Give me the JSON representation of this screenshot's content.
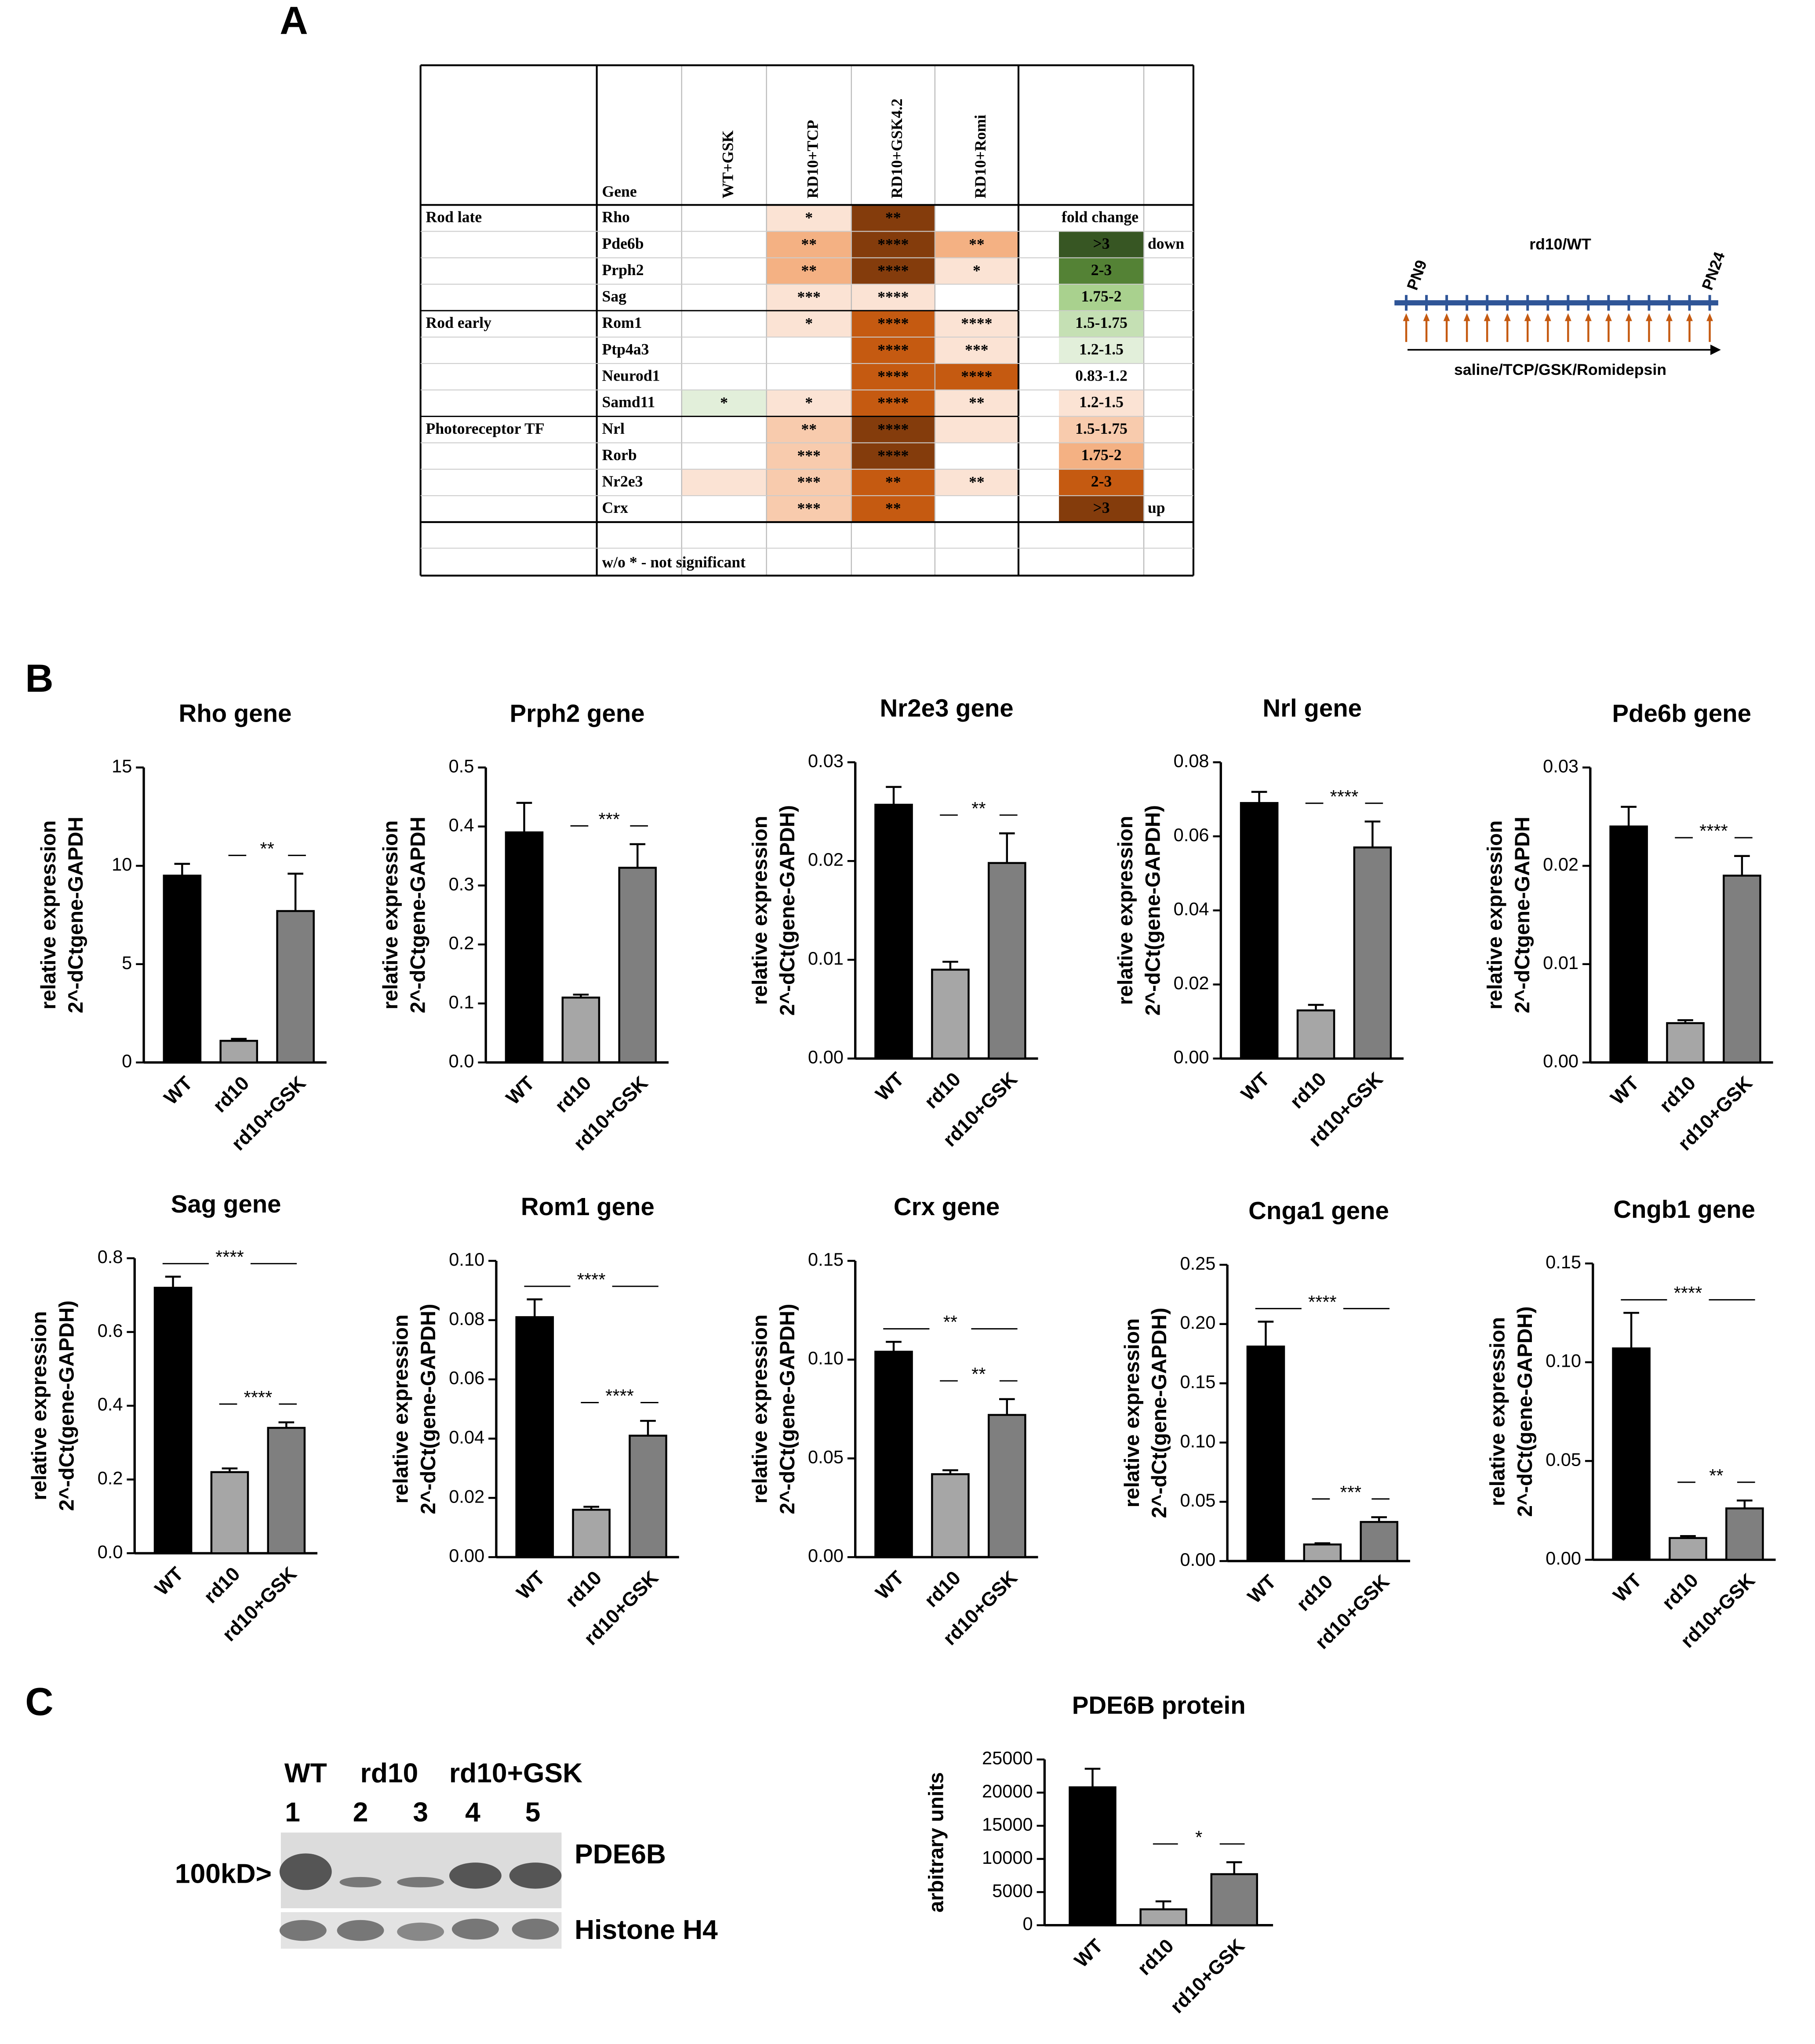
{
  "panel_labels": [
    "A",
    "B",
    "C"
  ],
  "table": {
    "gene_header": "Gene",
    "columns": [
      "WT+GSK",
      "RD10+TCP",
      "RD10+GSK4.2",
      "RD10+Romi"
    ],
    "rows": [
      {
        "group": "Rod late",
        "gene": "Rho",
        "cells": [
          {
            "color": "#ffffff"
          },
          {
            "text": "*",
            "color": "#fbe3d4"
          },
          {
            "text": "**",
            "color": "#843c0c"
          },
          {
            "color": "#ffffff"
          }
        ]
      },
      {
        "gene": "Pde6b",
        "cells": [
          {
            "color": "#ffffff"
          },
          {
            "text": "**",
            "color": "#f4b183"
          },
          {
            "text": "****",
            "color": "#843c0c"
          },
          {
            "text": "**",
            "color": "#f4b183"
          }
        ]
      },
      {
        "gene": "Prph2",
        "cells": [
          {
            "color": "#ffffff"
          },
          {
            "text": "**",
            "color": "#f4b183"
          },
          {
            "text": "****",
            "color": "#843c0c"
          },
          {
            "text": "*",
            "color": "#fbe3d4"
          }
        ]
      },
      {
        "gene": "Sag",
        "cells": [
          {
            "color": "#ffffff"
          },
          {
            "text": "***",
            "color": "#fbe3d4"
          },
          {
            "text": "****",
            "color": "#fbe3d4"
          },
          {
            "color": "#ffffff"
          }
        ]
      },
      {
        "group": "Rod early",
        "gene": "Rom1",
        "cells": [
          {
            "color": "#ffffff"
          },
          {
            "text": "*",
            "color": "#fbe3d4"
          },
          {
            "text": "****",
            "color": "#c55a11"
          },
          {
            "text": "****",
            "color": "#fbe3d4"
          }
        ]
      },
      {
        "gene": "Ptp4a3",
        "cells": [
          {
            "color": "#ffffff"
          },
          {
            "color": "#ffffff"
          },
          {
            "text": "****",
            "color": "#c55a11"
          },
          {
            "text": "***",
            "color": "#fbe3d4"
          }
        ]
      },
      {
        "gene": "Neurod1",
        "cells": [
          {
            "color": "#ffffff"
          },
          {
            "color": "#ffffff"
          },
          {
            "text": "****",
            "color": "#c55a11"
          },
          {
            "text": "****",
            "color": "#c55a11"
          }
        ]
      },
      {
        "gene": "Samd11",
        "cells": [
          {
            "text": "*",
            "color": "#e2efda"
          },
          {
            "text": "*",
            "color": "#fbe3d4"
          },
          {
            "text": "****",
            "color": "#c55a11"
          },
          {
            "text": "**",
            "color": "#fbe3d4"
          }
        ]
      },
      {
        "group": "Photoreceptor TF",
        "gene": "Nrl",
        "cells": [
          {
            "color": "#ffffff"
          },
          {
            "text": "**",
            "color": "#f8cbad"
          },
          {
            "text": "****",
            "color": "#843c0c"
          },
          {
            "color": "#fbe3d4"
          }
        ]
      },
      {
        "gene": "Rorb",
        "cells": [
          {
            "color": "#ffffff"
          },
          {
            "text": "***",
            "color": "#f8cbad"
          },
          {
            "text": "****",
            "color": "#843c0c"
          },
          {
            "color": "#ffffff"
          }
        ]
      },
      {
        "gene": "Nr2e3",
        "cells": [
          {
            "color": "#fbe3d4"
          },
          {
            "text": "***",
            "color": "#f8cbad"
          },
          {
            "text": "**",
            "color": "#c55a11"
          },
          {
            "text": "**",
            "color": "#fbe3d4"
          }
        ]
      },
      {
        "gene": "Crx",
        "cells": [
          {
            "color": "#ffffff"
          },
          {
            "text": "***",
            "color": "#f8cbad"
          },
          {
            "text": "**",
            "color": "#c55a11"
          },
          {
            "color": "#ffffff"
          }
        ]
      }
    ],
    "legend_title": "fold change",
    "legend": [
      {
        "label": ">3",
        "color": "#375623",
        "note": "down"
      },
      {
        "label": "2-3",
        "color": "#548235"
      },
      {
        "label": "1.75-2",
        "color": "#a9d18e"
      },
      {
        "label": "1.5-1.75",
        "color": "#c5e0b4"
      },
      {
        "label": "1.2-1.5",
        "color": "#e2efda"
      },
      {
        "label": "0.83-1.2",
        "color": "#ffffff"
      },
      {
        "label": "1.2-1.5",
        "color": "#fbe3d4"
      },
      {
        "label": "1.5-1.75",
        "color": "#f8cbad"
      },
      {
        "label": "1.75-2",
        "color": "#f4b183"
      },
      {
        "label": "2-3",
        "color": "#c55a11"
      },
      {
        "label": ">3",
        "color": "#843c0c",
        "note": "up"
      }
    ],
    "footnote": "w/o * - not significant"
  },
  "timeline": {
    "title": "rd10/WT",
    "start": "PN9",
    "end": "PN24",
    "treatment": "saline/TCP/GSK/Romidepsin"
  },
  "blot": {
    "groups": [
      "WT",
      "rd10",
      "rd10+GSK"
    ],
    "lanes": [
      1,
      2,
      3,
      4,
      5
    ],
    "marker": "100kD>",
    "bands": [
      "PDE6B",
      "Histone H4"
    ]
  },
  "chart_data": [
    {
      "type": "bar",
      "title": "Rho gene",
      "ylabel": [
        "relative expression",
        "2^-dCtgene-GAPDH"
      ],
      "categories": [
        "WT",
        "rd10",
        "rd10+GSK"
      ],
      "values": [
        9.5,
        1.1,
        7.7
      ],
      "errors": [
        0.6,
        0.1,
        1.9
      ],
      "colors": [
        "#000000",
        "#a6a6a6",
        "#7f7f7f"
      ],
      "ylim": [
        0,
        15
      ],
      "yticks": [
        0,
        5,
        10,
        15
      ],
      "annotations": [
        {
          "label": "**",
          "between": [
            1,
            2
          ]
        }
      ]
    },
    {
      "type": "bar",
      "title": "Prph2 gene",
      "ylabel": [
        "relative expression",
        "2^-dCtgene-GAPDH"
      ],
      "categories": [
        "WT",
        "rd10",
        "rd10+GSK"
      ],
      "values": [
        0.39,
        0.11,
        0.33
      ],
      "errors": [
        0.05,
        0.005,
        0.04
      ],
      "colors": [
        "#000000",
        "#a6a6a6",
        "#7f7f7f"
      ],
      "ylim": [
        0,
        0.5
      ],
      "yticks": [
        {
          "value": 0,
          "label": "0.0"
        },
        0.1,
        0.2,
        0.3,
        0.4,
        0.5
      ],
      "annotations": [
        {
          "label": "***",
          "between": [
            1,
            2
          ]
        }
      ]
    },
    {
      "type": "bar",
      "title": "Nr2e3 gene",
      "ylabel": [
        "relative expression",
        "2^-dCt(gene-GAPDH)"
      ],
      "categories": [
        "WT",
        "rd10",
        "rd10+GSK"
      ],
      "values": [
        0.0257,
        0.009,
        0.0198
      ],
      "errors": [
        0.0018,
        0.0008,
        0.003
      ],
      "colors": [
        "#000000",
        "#a6a6a6",
        "#7f7f7f"
      ],
      "ylim": [
        0,
        0.03
      ],
      "yticks": [
        {
          "value": 0,
          "label": "0.00"
        },
        0.01,
        0.02,
        0.03
      ],
      "annotations": [
        {
          "label": "**",
          "between": [
            1,
            2
          ]
        }
      ]
    },
    {
      "type": "bar",
      "title": "Nrl gene",
      "ylabel": [
        "relative expression",
        "2^-dCt(gene-GAPDH)"
      ],
      "categories": [
        "WT",
        "rd10",
        "rd10+GSK"
      ],
      "values": [
        0.069,
        0.013,
        0.057
      ],
      "errors": [
        0.003,
        0.0015,
        0.007
      ],
      "colors": [
        "#000000",
        "#a6a6a6",
        "#7f7f7f"
      ],
      "ylim": [
        0,
        0.08
      ],
      "yticks": [
        {
          "value": 0,
          "label": "0.00"
        },
        0.02,
        0.04,
        0.06,
        0.08
      ],
      "annotations": [
        {
          "label": "****",
          "between": [
            1,
            2
          ]
        }
      ]
    },
    {
      "type": "bar",
      "title": "Pde6b gene",
      "ylabel": [
        "relative expression",
        "2^-dCtgene-GAPDH"
      ],
      "categories": [
        "WT",
        "rd10",
        "rd10+GSK"
      ],
      "values": [
        0.024,
        0.004,
        0.019
      ],
      "errors": [
        0.002,
        0.0003,
        0.002
      ],
      "colors": [
        "#000000",
        "#a6a6a6",
        "#7f7f7f"
      ],
      "ylim": [
        0,
        0.03
      ],
      "yticks": [
        {
          "value": 0,
          "label": "0.00"
        },
        0.01,
        0.02,
        0.03
      ],
      "annotations": [
        {
          "label": "****",
          "between": [
            1,
            2
          ]
        }
      ]
    },
    {
      "type": "bar",
      "title": "Sag gene",
      "ylabel": [
        "relative expression",
        "2^-dCt(gene-GAPDH)"
      ],
      "categories": [
        "WT",
        "rd10",
        "rd10+GSK"
      ],
      "values": [
        0.72,
        0.22,
        0.34
      ],
      "errors": [
        0.03,
        0.01,
        0.015
      ],
      "colors": [
        "#000000",
        "#a6a6a6",
        "#7f7f7f"
      ],
      "ylim": [
        0,
        0.8
      ],
      "yticks": [
        {
          "value": 0,
          "label": "0.0"
        },
        0.2,
        0.4,
        0.6,
        0.8
      ],
      "annotations": [
        {
          "label": "****",
          "between": [
            0,
            2
          ]
        },
        {
          "label": "****",
          "between": [
            1,
            2
          ]
        }
      ]
    },
    {
      "type": "bar",
      "title": "Rom1 gene",
      "ylabel": [
        "relative expression",
        "2^-dCt(gene-GAPDH)"
      ],
      "categories": [
        "WT",
        "rd10",
        "rd10+GSK"
      ],
      "values": [
        0.081,
        0.016,
        0.041
      ],
      "errors": [
        0.006,
        0.001,
        0.005
      ],
      "colors": [
        "#000000",
        "#a6a6a6",
        "#7f7f7f"
      ],
      "ylim": [
        0,
        0.1
      ],
      "yticks": [
        {
          "value": 0,
          "label": "0.00"
        },
        0.02,
        0.04,
        0.06,
        0.08,
        {
          "value": 0.1,
          "label": "0.10"
        }
      ],
      "annotations": [
        {
          "label": "****",
          "between": [
            0,
            2
          ]
        },
        {
          "label": "****",
          "between": [
            1,
            2
          ]
        }
      ]
    },
    {
      "type": "bar",
      "title": "Crx gene",
      "ylabel": [
        "relative expression",
        "2^-dCt(gene-GAPDH)"
      ],
      "categories": [
        "WT",
        "rd10",
        "rd10+GSK"
      ],
      "values": [
        0.104,
        0.042,
        0.072
      ],
      "errors": [
        0.005,
        0.002,
        0.008
      ],
      "colors": [
        "#000000",
        "#a6a6a6",
        "#7f7f7f"
      ],
      "ylim": [
        0,
        0.15
      ],
      "yticks": [
        {
          "value": 0,
          "label": "0.00"
        },
        0.05,
        {
          "value": 0.1,
          "label": "0.10"
        },
        0.15
      ],
      "annotations": [
        {
          "label": "**",
          "between": [
            0,
            2
          ]
        },
        {
          "label": "**",
          "between": [
            1,
            2
          ]
        }
      ]
    },
    {
      "type": "bar",
      "title": "Cnga1 gene",
      "ylabel": [
        "relative expression",
        "2^-dCt(gene-GAPDH)"
      ],
      "categories": [
        "WT",
        "rd10",
        "rd10+GSK"
      ],
      "values": [
        0.181,
        0.014,
        0.033
      ],
      "errors": [
        0.021,
        0.001,
        0.004
      ],
      "colors": [
        "#000000",
        "#a6a6a6",
        "#7f7f7f"
      ],
      "ylim": [
        0,
        0.25
      ],
      "yticks": [
        {
          "value": 0,
          "label": "0.00"
        },
        0.05,
        {
          "value": 0.1,
          "label": "0.10"
        },
        0.15,
        {
          "value": 0.2,
          "label": "0.20"
        },
        0.25
      ],
      "annotations": [
        {
          "label": "****",
          "between": [
            0,
            2
          ]
        },
        {
          "label": "***",
          "between": [
            1,
            2
          ]
        }
      ]
    },
    {
      "type": "bar",
      "title": "Cngb1 gene",
      "ylabel": [
        "relative expression",
        "2^-dCt(gene-GAPDH)"
      ],
      "categories": [
        "WT",
        "rd10",
        "rd10+GSK"
      ],
      "values": [
        0.107,
        0.011,
        0.026
      ],
      "errors": [
        0.018,
        0.001,
        0.004
      ],
      "colors": [
        "#000000",
        "#a6a6a6",
        "#7f7f7f"
      ],
      "ylim": [
        0,
        0.15
      ],
      "yticks": [
        {
          "value": 0,
          "label": "0.00"
        },
        0.05,
        {
          "value": 0.1,
          "label": "0.10"
        },
        0.15
      ],
      "annotations": [
        {
          "label": "****",
          "between": [
            0,
            2
          ]
        },
        {
          "label": "**",
          "between": [
            1,
            2
          ]
        }
      ]
    },
    {
      "type": "bar",
      "title": "PDE6B protein",
      "ylabel": [
        "arbitrary units"
      ],
      "categories": [
        "WT",
        "rd10",
        "rd10+GSK"
      ],
      "values": [
        20800,
        2400,
        7700
      ],
      "errors": [
        2800,
        1200,
        1800
      ],
      "colors": [
        "#000000",
        "#a6a6a6",
        "#7f7f7f"
      ],
      "ylim": [
        0,
        25000
      ],
      "yticks": [
        0,
        5000,
        10000,
        15000,
        20000,
        25000
      ],
      "annotations": [
        {
          "label": "*",
          "between": [
            1,
            2
          ]
        }
      ]
    }
  ]
}
